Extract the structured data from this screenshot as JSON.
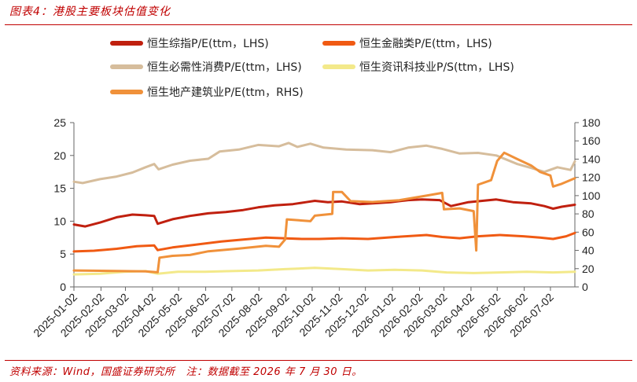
{
  "figure": {
    "title": "图表4：港股主要板块估值变化",
    "source_prefix": "资料来源：Wind，国盛证券研究所",
    "source_note": "注：数据截至 2026 年 7 月 30 日。"
  },
  "colors": {
    "accent": "#c00000",
    "hs_composite": "#c0200f",
    "hs_finance": "#f05a13",
    "hs_consumer": "#d6bd9c",
    "hs_tech": "#f3e98a",
    "hs_property": "#f0913a"
  },
  "chart_data": {
    "type": "line",
    "title": "",
    "xlabel": "",
    "ylabel": "",
    "y_left_lim": [
      0,
      25
    ],
    "y_left_ticks": [
      0,
      5,
      10,
      15,
      20,
      25
    ],
    "y_right_lim": [
      0,
      180
    ],
    "y_right_ticks": [
      0,
      20,
      40,
      60,
      80,
      100,
      120,
      140,
      160,
      180
    ],
    "x_range": [
      "2025-01-02",
      "2026-07-30"
    ],
    "x_ticks": [
      "2025-01-02",
      "2025-02-02",
      "2025-03-02",
      "2025-04-02",
      "2025-05-02",
      "2025-06-02",
      "2025-07-02",
      "2025-08-02",
      "2025-09-02",
      "2025-10-02",
      "2025-11-02",
      "2025-12-02",
      "2026-01-02",
      "2026-02-02",
      "2026-03-02",
      "2026-04-02",
      "2026-05-02",
      "2026-06-02",
      "2026-07-02"
    ],
    "grid": false,
    "legend_position": "top",
    "series": [
      {
        "name": "恒生综指P/E(ttm，LHS)",
        "axis": "left",
        "color": "#c0200f",
        "points": [
          [
            "2025-01-02",
            9.5
          ],
          [
            "2025-01-15",
            9.2
          ],
          [
            "2025-02-01",
            9.8
          ],
          [
            "2025-02-20",
            10.6
          ],
          [
            "2025-03-10",
            11.0
          ],
          [
            "2025-03-25",
            10.9
          ],
          [
            "2025-04-04",
            10.8
          ],
          [
            "2025-04-08",
            9.6
          ],
          [
            "2025-04-25",
            10.3
          ],
          [
            "2025-05-15",
            10.8
          ],
          [
            "2025-06-05",
            11.2
          ],
          [
            "2025-06-25",
            11.4
          ],
          [
            "2025-07-15",
            11.7
          ],
          [
            "2025-08-01",
            12.1
          ],
          [
            "2025-08-20",
            12.4
          ],
          [
            "2025-09-10",
            12.6
          ],
          [
            "2025-09-25",
            12.9
          ],
          [
            "2025-10-05",
            13.1
          ],
          [
            "2025-10-20",
            12.9
          ],
          [
            "2025-11-05",
            13.0
          ],
          [
            "2025-11-25",
            12.6
          ],
          [
            "2025-12-10",
            12.7
          ],
          [
            "2025-12-31",
            12.9
          ],
          [
            "2026-01-20",
            13.2
          ],
          [
            "2026-02-05",
            13.3
          ],
          [
            "2026-02-25",
            13.2
          ],
          [
            "2026-03-10",
            12.3
          ],
          [
            "2026-03-30",
            12.9
          ],
          [
            "2026-04-15",
            13.1
          ],
          [
            "2026-05-01",
            13.3
          ],
          [
            "2026-05-20",
            12.9
          ],
          [
            "2026-06-10",
            12.7
          ],
          [
            "2026-06-25",
            12.3
          ],
          [
            "2026-07-05",
            11.9
          ],
          [
            "2026-07-15",
            12.2
          ],
          [
            "2026-07-30",
            12.5
          ]
        ]
      },
      {
        "name": "恒生金融类P/E(ttm，LHS)",
        "axis": "left",
        "color": "#f05a13",
        "points": [
          [
            "2025-01-02",
            5.4
          ],
          [
            "2025-01-25",
            5.5
          ],
          [
            "2025-02-20",
            5.8
          ],
          [
            "2025-03-15",
            6.2
          ],
          [
            "2025-04-04",
            6.3
          ],
          [
            "2025-04-08",
            5.6
          ],
          [
            "2025-04-25",
            6.0
          ],
          [
            "2025-05-20",
            6.4
          ],
          [
            "2025-06-20",
            6.9
          ],
          [
            "2025-07-15",
            7.2
          ],
          [
            "2025-08-10",
            7.5
          ],
          [
            "2025-08-30",
            7.4
          ],
          [
            "2025-09-20",
            7.3
          ],
          [
            "2025-10-10",
            7.3
          ],
          [
            "2025-11-05",
            7.4
          ],
          [
            "2025-12-05",
            7.3
          ],
          [
            "2026-01-05",
            7.6
          ],
          [
            "2026-02-10",
            7.9
          ],
          [
            "2026-02-28",
            7.6
          ],
          [
            "2026-03-20",
            7.4
          ],
          [
            "2026-04-10",
            7.7
          ],
          [
            "2026-05-05",
            7.9
          ],
          [
            "2026-06-01",
            7.7
          ],
          [
            "2026-06-20",
            7.5
          ],
          [
            "2026-07-05",
            7.3
          ],
          [
            "2026-07-20",
            7.7
          ],
          [
            "2026-07-30",
            8.2
          ]
        ]
      },
      {
        "name": "恒生必需性消费P/E(ttm，LHS)",
        "axis": "left",
        "color": "#d6bd9c",
        "points": [
          [
            "2025-01-02",
            16.0
          ],
          [
            "2025-01-12",
            15.8
          ],
          [
            "2025-02-01",
            16.4
          ],
          [
            "2025-02-20",
            16.8
          ],
          [
            "2025-03-10",
            17.4
          ],
          [
            "2025-03-25",
            18.2
          ],
          [
            "2025-04-04",
            18.7
          ],
          [
            "2025-04-09",
            17.9
          ],
          [
            "2025-04-25",
            18.6
          ],
          [
            "2025-05-15",
            19.2
          ],
          [
            "2025-06-05",
            19.5
          ],
          [
            "2025-06-18",
            20.6
          ],
          [
            "2025-07-10",
            20.9
          ],
          [
            "2025-08-01",
            21.6
          ],
          [
            "2025-08-25",
            21.4
          ],
          [
            "2025-09-05",
            21.9
          ],
          [
            "2025-09-15",
            21.3
          ],
          [
            "2025-09-30",
            21.8
          ],
          [
            "2025-10-15",
            21.2
          ],
          [
            "2025-11-10",
            20.9
          ],
          [
            "2025-12-10",
            20.8
          ],
          [
            "2025-12-31",
            20.5
          ],
          [
            "2026-01-20",
            21.2
          ],
          [
            "2026-02-10",
            21.5
          ],
          [
            "2026-02-28",
            21.0
          ],
          [
            "2026-03-20",
            20.3
          ],
          [
            "2026-04-10",
            20.4
          ],
          [
            "2026-05-01",
            20.0
          ],
          [
            "2026-05-25",
            18.7
          ],
          [
            "2026-06-10",
            18.1
          ],
          [
            "2026-06-25",
            17.5
          ],
          [
            "2026-07-10",
            18.2
          ],
          [
            "2026-07-25",
            17.8
          ],
          [
            "2026-07-30",
            19.1
          ]
        ]
      },
      {
        "name": "恒生资讯科技业P/S(ttm，LHS)",
        "axis": "left",
        "color": "#f3e98a",
        "points": [
          [
            "2025-01-02",
            1.9
          ],
          [
            "2025-02-01",
            2.0
          ],
          [
            "2025-03-01",
            2.3
          ],
          [
            "2025-03-25",
            2.4
          ],
          [
            "2025-04-08",
            2.0
          ],
          [
            "2025-05-01",
            2.3
          ],
          [
            "2025-06-01",
            2.3
          ],
          [
            "2025-07-01",
            2.4
          ],
          [
            "2025-08-01",
            2.5
          ],
          [
            "2025-09-01",
            2.7
          ],
          [
            "2025-10-05",
            2.9
          ],
          [
            "2025-11-05",
            2.7
          ],
          [
            "2025-12-05",
            2.5
          ],
          [
            "2026-01-05",
            2.6
          ],
          [
            "2026-02-05",
            2.5
          ],
          [
            "2026-03-05",
            2.2
          ],
          [
            "2026-04-05",
            2.1
          ],
          [
            "2026-05-05",
            2.2
          ],
          [
            "2026-06-05",
            2.3
          ],
          [
            "2026-07-05",
            2.2
          ],
          [
            "2026-07-30",
            2.3
          ]
        ]
      },
      {
        "name": "恒生地产建筑业P/E(ttm，RHS)",
        "axis": "right",
        "color": "#f0913a",
        "points": [
          [
            "2025-01-02",
            18
          ],
          [
            "2025-03-25",
            17
          ],
          [
            "2025-04-08",
            16
          ],
          [
            "2025-04-10",
            32
          ],
          [
            "2025-04-25",
            34
          ],
          [
            "2025-05-15",
            35
          ],
          [
            "2025-06-05",
            39
          ],
          [
            "2025-07-10",
            42
          ],
          [
            "2025-08-10",
            45
          ],
          [
            "2025-08-25",
            44
          ],
          [
            "2025-09-01",
            52
          ],
          [
            "2025-09-03",
            74
          ],
          [
            "2025-09-30",
            72
          ],
          [
            "2025-10-05",
            78
          ],
          [
            "2025-10-25",
            80
          ],
          [
            "2025-10-26",
            104
          ],
          [
            "2025-11-05",
            104
          ],
          [
            "2025-11-15",
            94
          ],
          [
            "2025-12-10",
            93
          ],
          [
            "2026-01-10",
            95
          ],
          [
            "2026-02-10",
            100
          ],
          [
            "2026-02-28",
            103
          ],
          [
            "2026-03-02",
            85
          ],
          [
            "2026-03-20",
            86
          ],
          [
            "2026-04-05",
            83
          ],
          [
            "2026-04-08",
            40
          ],
          [
            "2026-04-10",
            112
          ],
          [
            "2026-04-25",
            117
          ],
          [
            "2026-05-02",
            138
          ],
          [
            "2026-05-10",
            147
          ],
          [
            "2026-05-25",
            140
          ],
          [
            "2026-06-10",
            133
          ],
          [
            "2026-06-20",
            126
          ],
          [
            "2026-07-02",
            122
          ],
          [
            "2026-07-05",
            110
          ],
          [
            "2026-07-15",
            113
          ],
          [
            "2026-07-30",
            119
          ]
        ]
      }
    ]
  }
}
